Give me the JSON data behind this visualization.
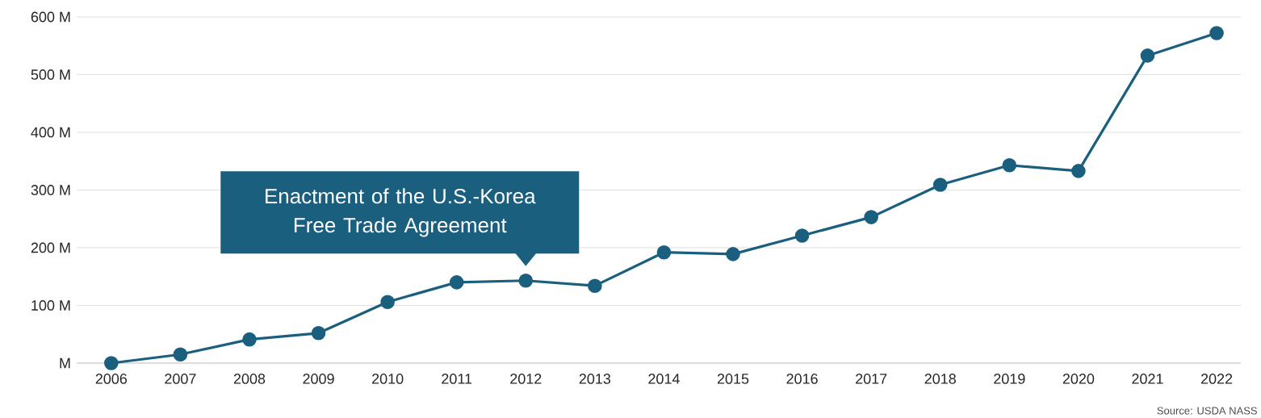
{
  "chart_data": {
    "type": "line",
    "categories": [
      "2006",
      "2007",
      "2008",
      "2009",
      "2010",
      "2011",
      "2012",
      "2013",
      "2014",
      "2015",
      "2016",
      "2017",
      "2018",
      "2019",
      "2020",
      "2021",
      "2022"
    ],
    "series": [
      {
        "color": "#1b5f7f",
        "values": [
          0,
          15,
          41,
          52,
          106,
          140,
          143,
          134,
          192,
          189,
          221,
          253,
          309,
          343,
          333,
          533,
          572
        ]
      }
    ],
    "ylim": [
      0,
      600
    ],
    "yticks": [
      {
        "value": 0,
        "label": "M"
      },
      {
        "value": 100,
        "label": "100 M"
      },
      {
        "value": 200,
        "label": "200 M"
      },
      {
        "value": 300,
        "label": "300 M"
      },
      {
        "value": 400,
        "label": "400 M"
      },
      {
        "value": 500,
        "label": "500 M"
      },
      {
        "value": 600,
        "label": "600 M"
      }
    ],
    "grid": "y",
    "marker": "circle",
    "annotations": [
      {
        "text": "Enactment of the U.S.-Korea Free Trade Agreement",
        "x": "2012",
        "y": 143
      },
      "Source: USDA NASS"
    ]
  }
}
